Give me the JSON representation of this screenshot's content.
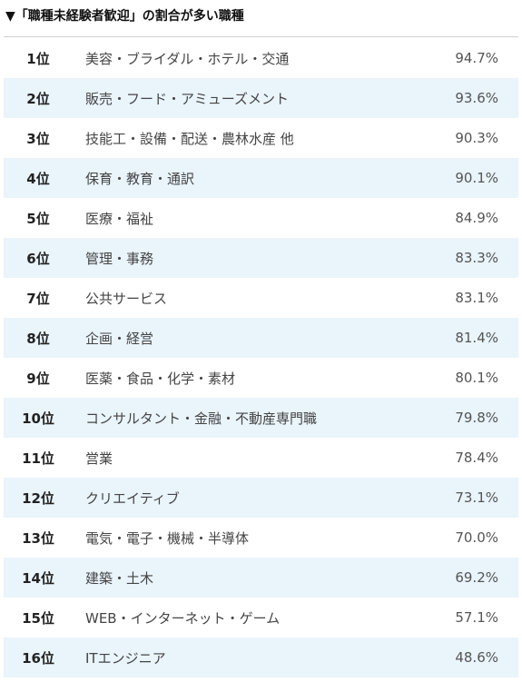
{
  "header": {
    "title": "▼「職種未経験者歓迎」の割合が多い職種"
  },
  "rows": [
    {
      "rank": "1位",
      "job": "美容・ブライダル・ホテル・交通",
      "rate": "94.7%"
    },
    {
      "rank": "2位",
      "job": "販売・フード・アミューズメント",
      "rate": "93.6%"
    },
    {
      "rank": "3位",
      "job": "技能工・設備・配送・農林水産 他",
      "rate": "90.3%"
    },
    {
      "rank": "4位",
      "job": "保育・教育・通訳",
      "rate": "90.1%"
    },
    {
      "rank": "5位",
      "job": "医療・福祉",
      "rate": "84.9%"
    },
    {
      "rank": "6位",
      "job": "管理・事務",
      "rate": "83.3%"
    },
    {
      "rank": "7位",
      "job": "公共サービス",
      "rate": "83.1%"
    },
    {
      "rank": "8位",
      "job": "企画・経営",
      "rate": "81.4%"
    },
    {
      "rank": "9位",
      "job": "医薬・食品・化学・素材",
      "rate": "80.1%"
    },
    {
      "rank": "10位",
      "job": "コンサルタント・金融・不動産専門職",
      "rate": "79.8%"
    },
    {
      "rank": "11位",
      "job": "営業",
      "rate": "78.4%"
    },
    {
      "rank": "12位",
      "job": "クリエイティブ",
      "rate": "73.1%"
    },
    {
      "rank": "13位",
      "job": "電気・電子・機械・半導体",
      "rate": "70.0%"
    },
    {
      "rank": "14位",
      "job": "建築・土木",
      "rate": "69.2%"
    },
    {
      "rank": "15位",
      "job": "WEB・インターネット・ゲーム",
      "rate": "57.1%"
    },
    {
      "rank": "16位",
      "job": "ITエンジニア",
      "rate": "48.6%"
    }
  ],
  "colors": {
    "alt_row_bg": "#e9f4fb",
    "divider": "#cfcfcf"
  }
}
